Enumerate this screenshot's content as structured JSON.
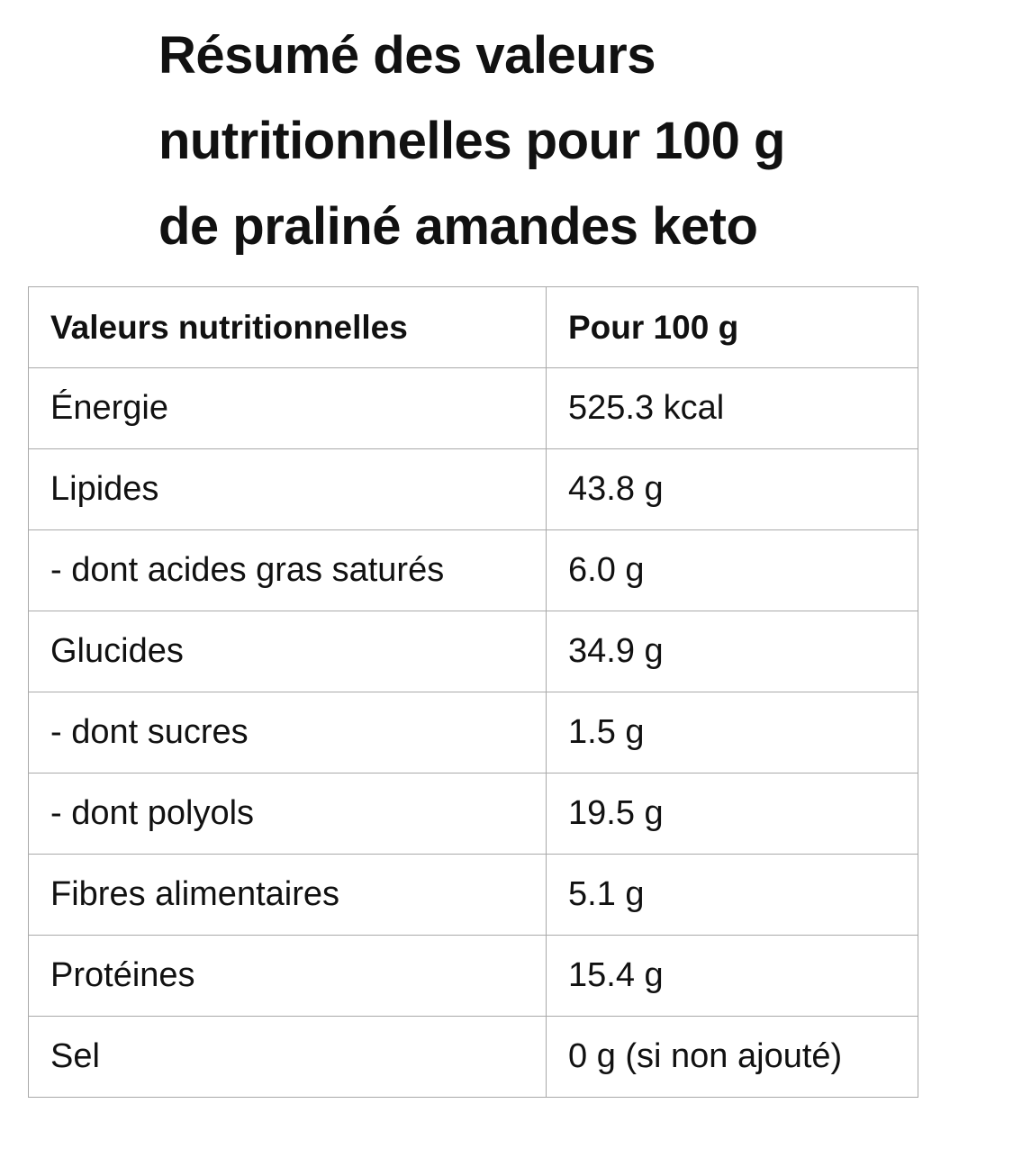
{
  "title": {
    "line1": "Résumé des valeurs",
    "line2": "nutritionnelles pour 100 g",
    "line3": "de praliné amandes keto"
  },
  "table": {
    "headers": [
      "Valeurs nutritionnelles",
      "Pour 100 g"
    ],
    "rows": [
      [
        "Énergie",
        "525.3 kcal"
      ],
      [
        "Lipides",
        "43.8 g"
      ],
      [
        "- dont acides gras saturés",
        "6.0 g"
      ],
      [
        "Glucides",
        "34.9 g"
      ],
      [
        "- dont sucres",
        "1.5 g"
      ],
      [
        "- dont polyols",
        "19.5 g"
      ],
      [
        "Fibres alimentaires",
        "5.1 g"
      ],
      [
        "Protéines",
        "15.4 g"
      ],
      [
        "Sel",
        "0 g (si non ajouté)"
      ]
    ]
  }
}
